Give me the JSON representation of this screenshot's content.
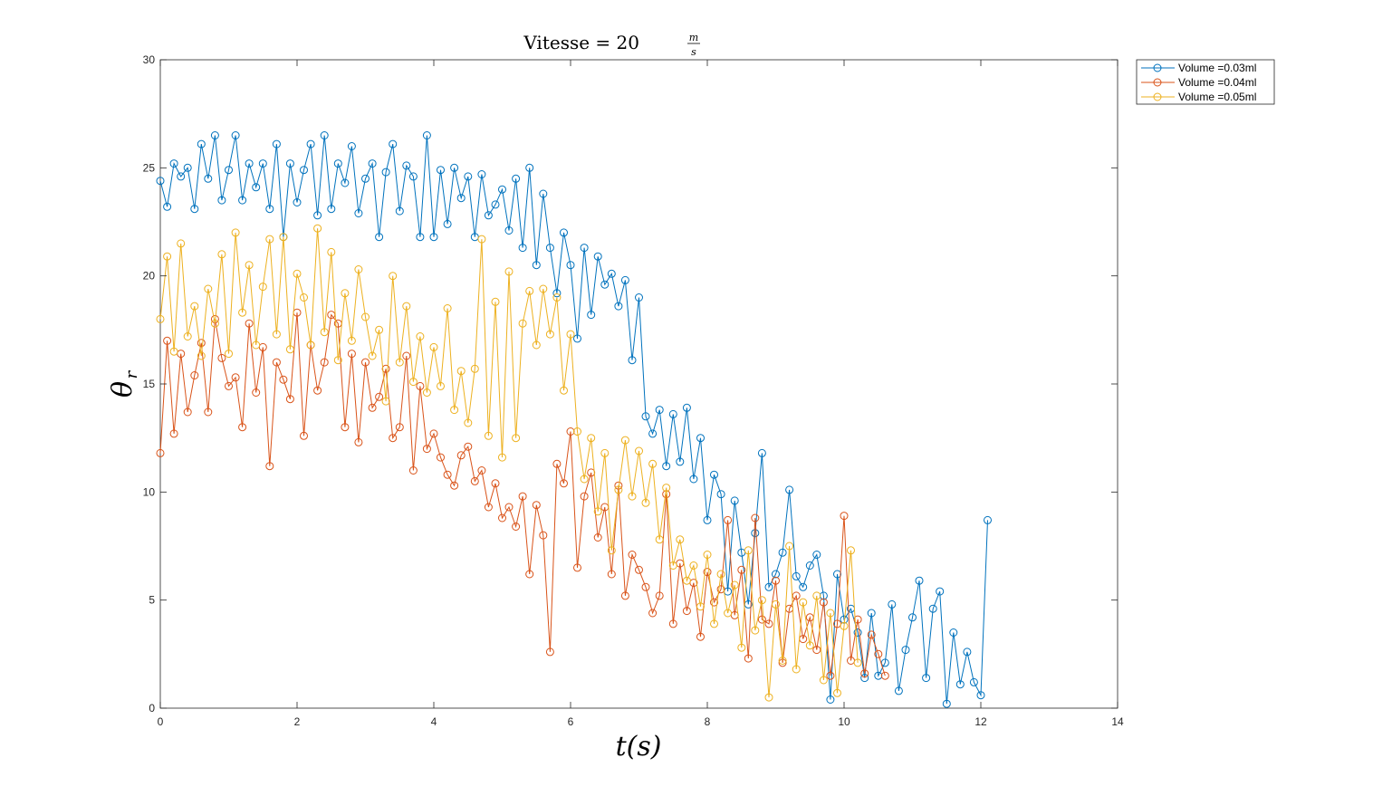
{
  "chart_data": {
    "type": "line",
    "title": "Vitesse = 20",
    "title_fraction": {
      "numerator": "m",
      "denominator": "s"
    },
    "xlabel": "t(s)",
    "ylabel": {
      "symbol": "θ",
      "subscript": "r"
    },
    "xlim": [
      0,
      14
    ],
    "ylim": [
      0,
      30
    ],
    "x_ticks": [
      0,
      2,
      4,
      6,
      8,
      10,
      12,
      14
    ],
    "y_ticks": [
      0,
      5,
      10,
      15,
      20,
      25,
      30
    ],
    "grid": false,
    "legend_position": "outside-top-right",
    "marker": "circle",
    "series": [
      {
        "name": "Volume =0.03ml",
        "color": "#0072BD",
        "x": [
          0.0,
          0.1,
          0.2,
          0.3,
          0.4,
          0.5,
          0.6,
          0.7,
          0.8,
          0.9,
          1.0,
          1.1,
          1.2,
          1.3,
          1.4,
          1.5,
          1.6,
          1.7,
          1.8,
          1.9,
          2.0,
          2.1,
          2.2,
          2.3,
          2.4,
          2.5,
          2.6,
          2.7,
          2.8,
          2.9,
          3.0,
          3.1,
          3.2,
          3.3,
          3.4,
          3.5,
          3.6,
          3.7,
          3.8,
          3.9,
          4.0,
          4.1,
          4.2,
          4.3,
          4.4,
          4.5,
          4.6,
          4.7,
          4.8,
          4.9,
          5.0,
          5.1,
          5.2,
          5.3,
          5.4,
          5.5,
          5.6,
          5.7,
          5.8,
          5.9,
          6.0,
          6.1,
          6.2,
          6.3,
          6.4,
          6.5,
          6.6,
          6.7,
          6.8,
          6.9,
          7.0,
          7.1,
          7.2,
          7.3,
          7.4,
          7.5,
          7.6,
          7.7,
          7.8,
          7.9,
          8.0,
          8.1,
          8.2,
          8.3,
          8.4,
          8.5,
          8.6,
          8.7,
          8.8,
          8.9,
          9.0,
          9.1,
          9.2,
          9.3,
          9.4,
          9.5,
          9.6,
          9.7,
          9.8,
          9.9,
          10.0,
          10.1,
          10.2,
          10.3,
          10.4,
          10.5,
          10.6,
          10.7,
          10.8,
          10.9,
          11.0,
          11.1,
          11.2,
          11.3,
          11.4,
          11.5,
          11.6,
          11.7,
          11.8,
          11.9,
          12.0,
          12.1
        ],
        "y": [
          24.4,
          23.2,
          25.2,
          24.6,
          25.0,
          23.1,
          26.1,
          24.5,
          26.5,
          23.5,
          24.9,
          26.5,
          23.5,
          25.2,
          24.1,
          25.2,
          23.1,
          26.1,
          21.8,
          25.2,
          23.4,
          24.9,
          26.1,
          22.8,
          26.5,
          23.1,
          25.2,
          24.3,
          26.0,
          22.9,
          24.5,
          25.2,
          21.8,
          24.8,
          26.1,
          23.0,
          25.1,
          24.6,
          21.8,
          26.5,
          21.8,
          24.9,
          22.4,
          25.0,
          23.6,
          24.6,
          21.8,
          24.7,
          22.8,
          23.3,
          24.0,
          22.1,
          24.5,
          21.3,
          25.0,
          20.5,
          23.8,
          21.3,
          19.2,
          22.0,
          20.5,
          17.1,
          21.3,
          18.2,
          20.9,
          19.6,
          20.1,
          18.6,
          19.8,
          16.1,
          19.0,
          13.5,
          12.7,
          13.8,
          11.2,
          13.6,
          11.4,
          13.9,
          10.6,
          12.5,
          8.7,
          10.8,
          9.9,
          5.4,
          9.6,
          7.2,
          4.8,
          8.1,
          11.8,
          5.6,
          6.2,
          7.2,
          10.1,
          6.1,
          5.6,
          6.6,
          7.1,
          5.2,
          0.4,
          6.2,
          4.1,
          4.6,
          3.5,
          1.4,
          4.4,
          1.5,
          2.1,
          4.8,
          0.8,
          2.7,
          4.2,
          5.9,
          1.4,
          4.6,
          5.4,
          0.2,
          3.5,
          1.1,
          2.6,
          1.2,
          0.6,
          8.7
        ]
      },
      {
        "name": "Volume =0.04ml",
        "color": "#D95319",
        "x": [
          0.0,
          0.1,
          0.2,
          0.3,
          0.4,
          0.5,
          0.6,
          0.7,
          0.8,
          0.9,
          1.0,
          1.1,
          1.2,
          1.3,
          1.4,
          1.5,
          1.6,
          1.7,
          1.8,
          1.9,
          2.0,
          2.1,
          2.2,
          2.3,
          2.4,
          2.5,
          2.6,
          2.7,
          2.8,
          2.9,
          3.0,
          3.1,
          3.2,
          3.3,
          3.4,
          3.5,
          3.6,
          3.7,
          3.8,
          3.9,
          4.0,
          4.1,
          4.2,
          4.3,
          4.4,
          4.5,
          4.6,
          4.7,
          4.8,
          4.9,
          5.0,
          5.1,
          5.2,
          5.3,
          5.4,
          5.5,
          5.6,
          5.7,
          5.8,
          5.9,
          6.0,
          6.1,
          6.2,
          6.3,
          6.4,
          6.5,
          6.6,
          6.7,
          6.8,
          6.9,
          7.0,
          7.1,
          7.2,
          7.3,
          7.4,
          7.5,
          7.6,
          7.7,
          7.8,
          7.9,
          8.0,
          8.1,
          8.2,
          8.3,
          8.4,
          8.5,
          8.6,
          8.7,
          8.8,
          8.9,
          9.0,
          9.1,
          9.2,
          9.3,
          9.4,
          9.5,
          9.6,
          9.7,
          9.8,
          9.9,
          10.0,
          10.1,
          10.2,
          10.3,
          10.4,
          10.5,
          10.6
        ],
        "y": [
          11.8,
          17.0,
          12.7,
          16.4,
          13.7,
          15.4,
          16.9,
          13.7,
          18.0,
          16.2,
          14.9,
          15.3,
          13.0,
          17.8,
          14.6,
          16.7,
          11.2,
          16.0,
          15.2,
          14.3,
          18.3,
          12.6,
          16.8,
          14.7,
          16.0,
          18.2,
          17.8,
          13.0,
          16.4,
          12.3,
          16.0,
          13.9,
          14.4,
          15.7,
          12.5,
          13.0,
          16.3,
          11.0,
          14.9,
          12.0,
          12.7,
          11.6,
          10.8,
          10.3,
          11.7,
          12.1,
          10.5,
          11.0,
          9.3,
          10.4,
          8.8,
          9.3,
          8.4,
          9.8,
          6.2,
          9.4,
          8.0,
          2.6,
          11.3,
          10.4,
          12.8,
          6.5,
          9.8,
          10.9,
          7.9,
          9.3,
          6.2,
          10.3,
          5.2,
          7.1,
          6.4,
          5.6,
          4.4,
          5.2,
          9.9,
          3.9,
          6.7,
          4.5,
          5.8,
          3.3,
          6.3,
          4.9,
          5.5,
          8.7,
          4.3,
          6.4,
          2.3,
          8.8,
          4.1,
          3.9,
          5.9,
          2.1,
          4.6,
          5.2,
          3.2,
          4.2,
          2.7,
          4.9,
          1.5,
          3.9,
          8.9,
          2.2,
          4.1,
          1.6,
          3.4,
          2.5,
          1.5
        ]
      },
      {
        "name": "Volume =0.05ml",
        "color": "#EDB120",
        "x": [
          0.0,
          0.1,
          0.2,
          0.3,
          0.4,
          0.5,
          0.6,
          0.7,
          0.8,
          0.9,
          1.0,
          1.1,
          1.2,
          1.3,
          1.4,
          1.5,
          1.6,
          1.7,
          1.8,
          1.9,
          2.0,
          2.1,
          2.2,
          2.3,
          2.4,
          2.5,
          2.6,
          2.7,
          2.8,
          2.9,
          3.0,
          3.1,
          3.2,
          3.3,
          3.4,
          3.5,
          3.6,
          3.7,
          3.8,
          3.9,
          4.0,
          4.1,
          4.2,
          4.3,
          4.4,
          4.5,
          4.6,
          4.7,
          4.8,
          4.9,
          5.0,
          5.1,
          5.2,
          5.3,
          5.4,
          5.5,
          5.6,
          5.7,
          5.8,
          5.9,
          6.0,
          6.1,
          6.2,
          6.3,
          6.4,
          6.5,
          6.6,
          6.7,
          6.8,
          6.9,
          7.0,
          7.1,
          7.2,
          7.3,
          7.4,
          7.5,
          7.6,
          7.7,
          7.8,
          7.9,
          8.0,
          8.1,
          8.2,
          8.3,
          8.4,
          8.5,
          8.6,
          8.7,
          8.8,
          8.9,
          9.0,
          9.1,
          9.2,
          9.3,
          9.4,
          9.5,
          9.6,
          9.7,
          9.8,
          9.9,
          10.0,
          10.1,
          10.2
        ],
        "y": [
          18.0,
          20.9,
          16.5,
          21.5,
          17.2,
          18.6,
          16.3,
          19.4,
          17.8,
          21.0,
          16.4,
          22.0,
          18.3,
          20.5,
          16.8,
          19.5,
          21.7,
          17.3,
          21.8,
          16.6,
          20.1,
          19.0,
          16.8,
          22.2,
          17.4,
          21.1,
          16.1,
          19.2,
          17.0,
          20.3,
          18.1,
          16.3,
          17.5,
          14.2,
          20.0,
          16.0,
          18.6,
          15.1,
          17.2,
          14.6,
          16.7,
          14.9,
          18.5,
          13.8,
          15.6,
          13.2,
          15.7,
          21.7,
          12.6,
          18.8,
          11.6,
          20.2,
          12.5,
          17.8,
          19.3,
          16.8,
          19.4,
          17.3,
          19.0,
          14.7,
          17.3,
          12.8,
          10.6,
          12.5,
          9.1,
          11.8,
          7.3,
          10.1,
          12.4,
          9.8,
          11.9,
          9.5,
          11.3,
          7.8,
          10.2,
          6.6,
          7.8,
          5.9,
          6.6,
          4.7,
          7.1,
          3.9,
          6.2,
          4.4,
          5.7,
          2.8,
          7.3,
          3.6,
          5.0,
          0.5,
          4.8,
          2.2,
          7.5,
          1.8,
          4.9,
          2.9,
          5.2,
          1.3,
          4.4,
          0.7,
          3.8,
          7.3,
          2.1
        ]
      }
    ]
  }
}
